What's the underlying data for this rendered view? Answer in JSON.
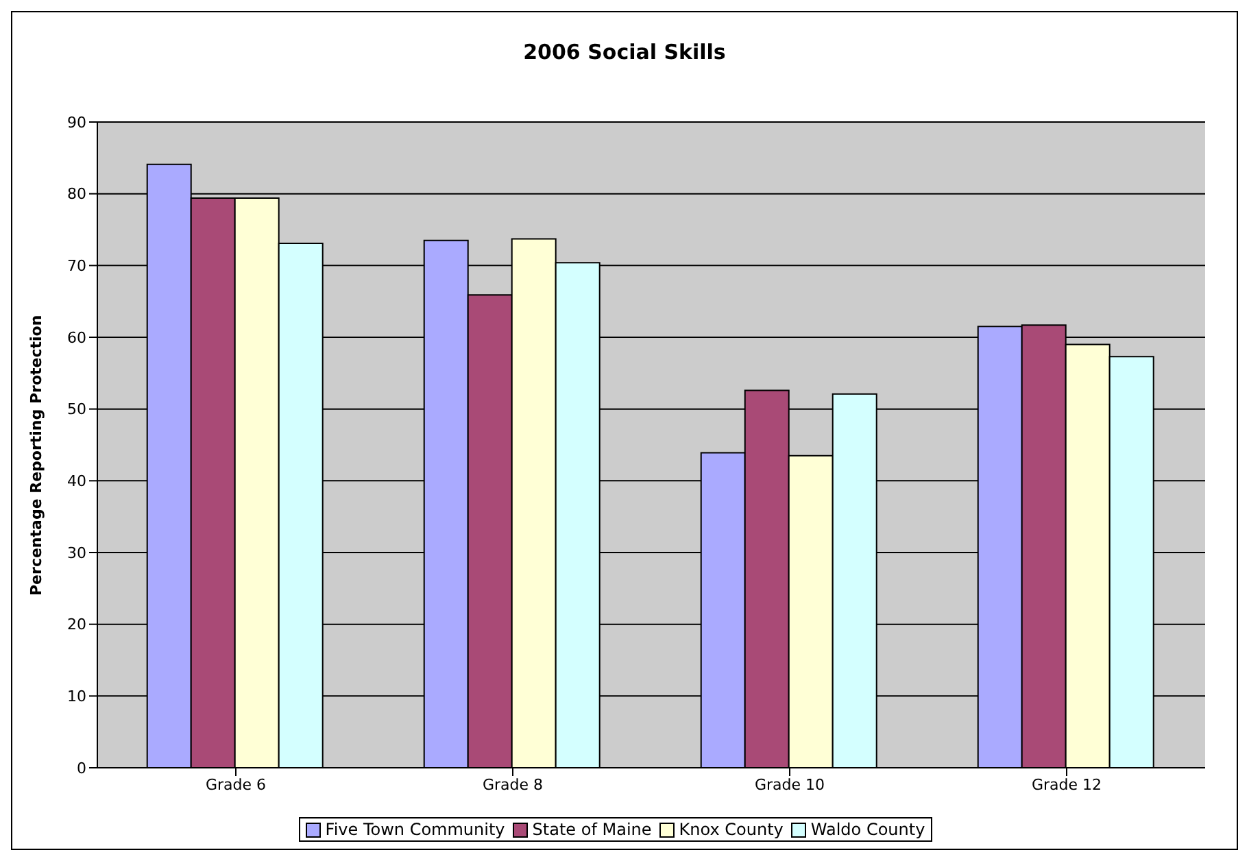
{
  "chart_data": {
    "type": "bar",
    "title": "2006 Social Skills",
    "ylabel": "Percentage Reporting Protection",
    "categories": [
      "Grade 6",
      "Grade 8",
      "Grade 10",
      "Grade 12"
    ],
    "series": [
      {
        "name": "Five Town Community",
        "color": "#aaaaff",
        "values": [
          84.1,
          73.5,
          43.9,
          61.5
        ]
      },
      {
        "name": "State of Maine",
        "color": "#a94a76",
        "values": [
          79.4,
          65.9,
          52.6,
          61.7
        ]
      },
      {
        "name": "Knox County",
        "color": "#ffffd6",
        "values": [
          79.4,
          73.7,
          43.5,
          59.0
        ]
      },
      {
        "name": "Waldo County",
        "color": "#d4ffff",
        "values": [
          73.1,
          70.4,
          52.1,
          57.3
        ]
      }
    ],
    "ylim": [
      0,
      90
    ],
    "yticks": [
      0,
      10,
      20,
      30,
      40,
      50,
      60,
      70,
      80,
      90
    ],
    "grid": "y",
    "legend": "bottom"
  }
}
